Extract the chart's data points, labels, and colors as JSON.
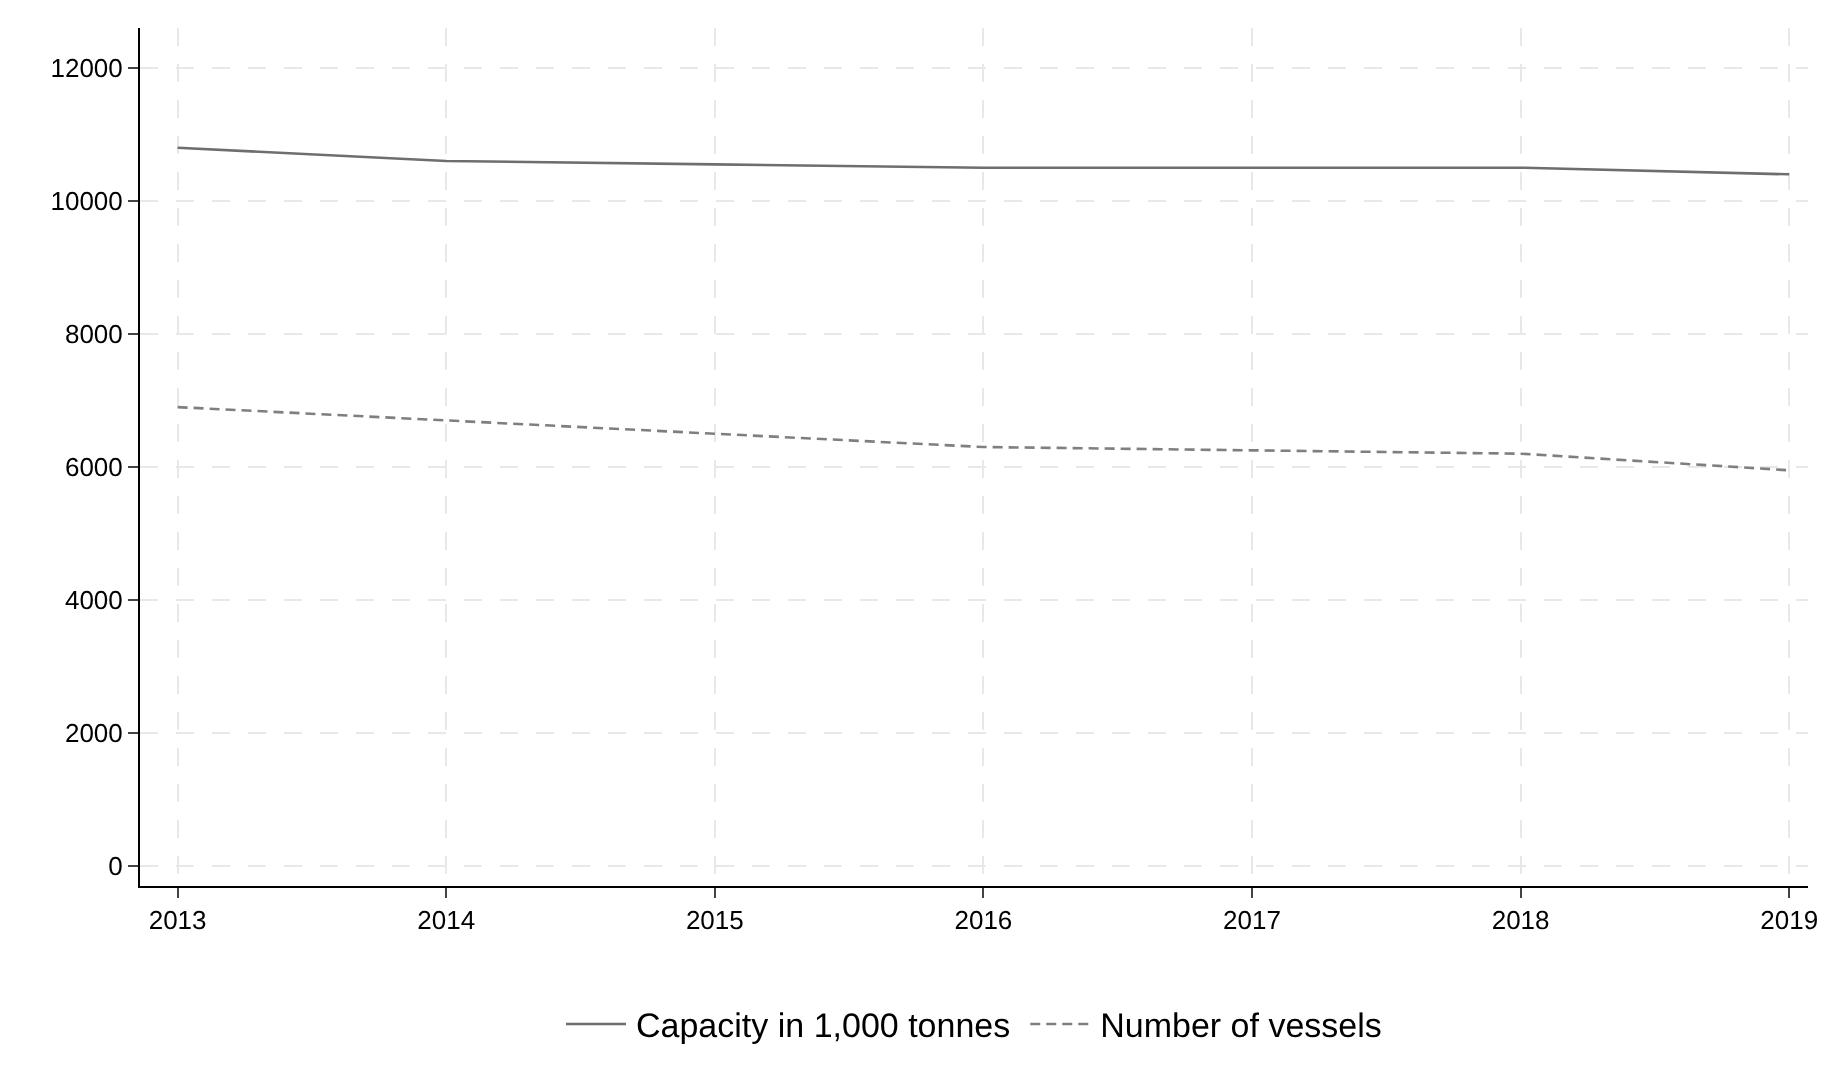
{
  "chart_data": {
    "type": "line",
    "x": [
      2013,
      2014,
      2015,
      2016,
      2017,
      2018,
      2019
    ],
    "series": [
      {
        "name": "Capacity in 1,000 tonnes",
        "color": "#6e6e6e",
        "line_style": "solid",
        "values": [
          10800,
          10600,
          10550,
          10500,
          10500,
          10500,
          10400
        ]
      },
      {
        "name": "Number of vessels",
        "color": "#7f7f7f",
        "line_style": "dashed",
        "values": [
          6900,
          6700,
          6500,
          6300,
          6250,
          6200,
          5950
        ]
      }
    ],
    "xlim": [
      2012.86,
      2019.07
    ],
    "xticks": [
      2013,
      2014,
      2015,
      2016,
      2017,
      2018,
      2019
    ],
    "ylim": [
      -300,
      12600
    ],
    "yticks": [
      0,
      2000,
      4000,
      6000,
      8000,
      10000,
      12000
    ],
    "grid": true,
    "legend": "bottom",
    "marker": "none"
  }
}
